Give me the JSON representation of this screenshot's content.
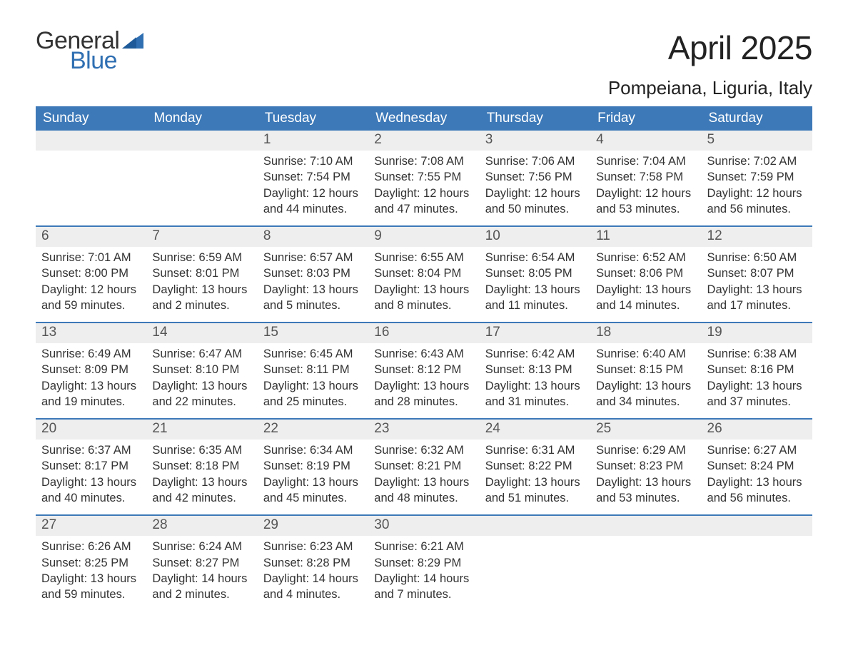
{
  "logo": {
    "word1": "General",
    "word2": "Blue",
    "flag_color": "#2f6fb2",
    "text_color": "#333333"
  },
  "title": "April 2025",
  "location": "Pompeiana, Liguria, Italy",
  "colors": {
    "header_bg": "#3d79b8",
    "header_text": "#ffffff",
    "daynum_bg": "#eeeeee",
    "week_border": "#3d79b8",
    "body_text": "#333333",
    "background": "#ffffff"
  },
  "day_headers": [
    "Sunday",
    "Monday",
    "Tuesday",
    "Wednesday",
    "Thursday",
    "Friday",
    "Saturday"
  ],
  "weeks": [
    [
      {
        "blank": true
      },
      {
        "blank": true
      },
      {
        "n": "1",
        "sunrise": "7:10 AM",
        "sunset": "7:54 PM",
        "daylight": "12 hours and 44 minutes."
      },
      {
        "n": "2",
        "sunrise": "7:08 AM",
        "sunset": "7:55 PM",
        "daylight": "12 hours and 47 minutes."
      },
      {
        "n": "3",
        "sunrise": "7:06 AM",
        "sunset": "7:56 PM",
        "daylight": "12 hours and 50 minutes."
      },
      {
        "n": "4",
        "sunrise": "7:04 AM",
        "sunset": "7:58 PM",
        "daylight": "12 hours and 53 minutes."
      },
      {
        "n": "5",
        "sunrise": "7:02 AM",
        "sunset": "7:59 PM",
        "daylight": "12 hours and 56 minutes."
      }
    ],
    [
      {
        "n": "6",
        "sunrise": "7:01 AM",
        "sunset": "8:00 PM",
        "daylight": "12 hours and 59 minutes."
      },
      {
        "n": "7",
        "sunrise": "6:59 AM",
        "sunset": "8:01 PM",
        "daylight": "13 hours and 2 minutes."
      },
      {
        "n": "8",
        "sunrise": "6:57 AM",
        "sunset": "8:03 PM",
        "daylight": "13 hours and 5 minutes."
      },
      {
        "n": "9",
        "sunrise": "6:55 AM",
        "sunset": "8:04 PM",
        "daylight": "13 hours and 8 minutes."
      },
      {
        "n": "10",
        "sunrise": "6:54 AM",
        "sunset": "8:05 PM",
        "daylight": "13 hours and 11 minutes."
      },
      {
        "n": "11",
        "sunrise": "6:52 AM",
        "sunset": "8:06 PM",
        "daylight": "13 hours and 14 minutes."
      },
      {
        "n": "12",
        "sunrise": "6:50 AM",
        "sunset": "8:07 PM",
        "daylight": "13 hours and 17 minutes."
      }
    ],
    [
      {
        "n": "13",
        "sunrise": "6:49 AM",
        "sunset": "8:09 PM",
        "daylight": "13 hours and 19 minutes."
      },
      {
        "n": "14",
        "sunrise": "6:47 AM",
        "sunset": "8:10 PM",
        "daylight": "13 hours and 22 minutes."
      },
      {
        "n": "15",
        "sunrise": "6:45 AM",
        "sunset": "8:11 PM",
        "daylight": "13 hours and 25 minutes."
      },
      {
        "n": "16",
        "sunrise": "6:43 AM",
        "sunset": "8:12 PM",
        "daylight": "13 hours and 28 minutes."
      },
      {
        "n": "17",
        "sunrise": "6:42 AM",
        "sunset": "8:13 PM",
        "daylight": "13 hours and 31 minutes."
      },
      {
        "n": "18",
        "sunrise": "6:40 AM",
        "sunset": "8:15 PM",
        "daylight": "13 hours and 34 minutes."
      },
      {
        "n": "19",
        "sunrise": "6:38 AM",
        "sunset": "8:16 PM",
        "daylight": "13 hours and 37 minutes."
      }
    ],
    [
      {
        "n": "20",
        "sunrise": "6:37 AM",
        "sunset": "8:17 PM",
        "daylight": "13 hours and 40 minutes."
      },
      {
        "n": "21",
        "sunrise": "6:35 AM",
        "sunset": "8:18 PM",
        "daylight": "13 hours and 42 minutes."
      },
      {
        "n": "22",
        "sunrise": "6:34 AM",
        "sunset": "8:19 PM",
        "daylight": "13 hours and 45 minutes."
      },
      {
        "n": "23",
        "sunrise": "6:32 AM",
        "sunset": "8:21 PM",
        "daylight": "13 hours and 48 minutes."
      },
      {
        "n": "24",
        "sunrise": "6:31 AM",
        "sunset": "8:22 PM",
        "daylight": "13 hours and 51 minutes."
      },
      {
        "n": "25",
        "sunrise": "6:29 AM",
        "sunset": "8:23 PM",
        "daylight": "13 hours and 53 minutes."
      },
      {
        "n": "26",
        "sunrise": "6:27 AM",
        "sunset": "8:24 PM",
        "daylight": "13 hours and 56 minutes."
      }
    ],
    [
      {
        "n": "27",
        "sunrise": "6:26 AM",
        "sunset": "8:25 PM",
        "daylight": "13 hours and 59 minutes."
      },
      {
        "n": "28",
        "sunrise": "6:24 AM",
        "sunset": "8:27 PM",
        "daylight": "14 hours and 2 minutes."
      },
      {
        "n": "29",
        "sunrise": "6:23 AM",
        "sunset": "8:28 PM",
        "daylight": "14 hours and 4 minutes."
      },
      {
        "n": "30",
        "sunrise": "6:21 AM",
        "sunset": "8:29 PM",
        "daylight": "14 hours and 7 minutes."
      },
      {
        "blank": true
      },
      {
        "blank": true
      },
      {
        "blank": true
      }
    ]
  ],
  "labels": {
    "sunrise": "Sunrise: ",
    "sunset": "Sunset: ",
    "daylight": "Daylight: "
  }
}
